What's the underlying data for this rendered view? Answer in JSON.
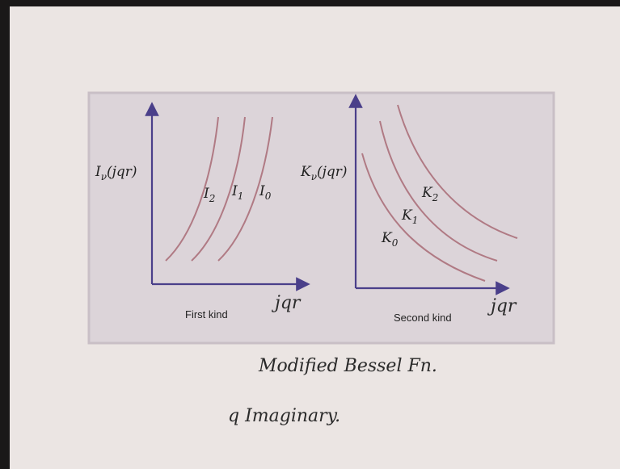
{
  "left_plot": {
    "y_label": {
      "base": "I",
      "sub": "ν",
      "rest": "(jqr)"
    },
    "curves": [
      {
        "base": "I",
        "sub": "2"
      },
      {
        "base": "I",
        "sub": "1"
      },
      {
        "base": "I",
        "sub": "0"
      }
    ],
    "caption": "First kind",
    "x_label": "jqr"
  },
  "right_plot": {
    "y_label": {
      "base": "K",
      "sub": "ν",
      "rest": "(jqr)"
    },
    "curves": [
      {
        "base": "K",
        "sub": "2"
      },
      {
        "base": "K",
        "sub": "1"
      },
      {
        "base": "K",
        "sub": "0"
      }
    ],
    "caption": "Second kind",
    "x_label": "jqr"
  },
  "notes": [
    "Modified Bessel Fn.",
    "q Imaginary."
  ]
}
